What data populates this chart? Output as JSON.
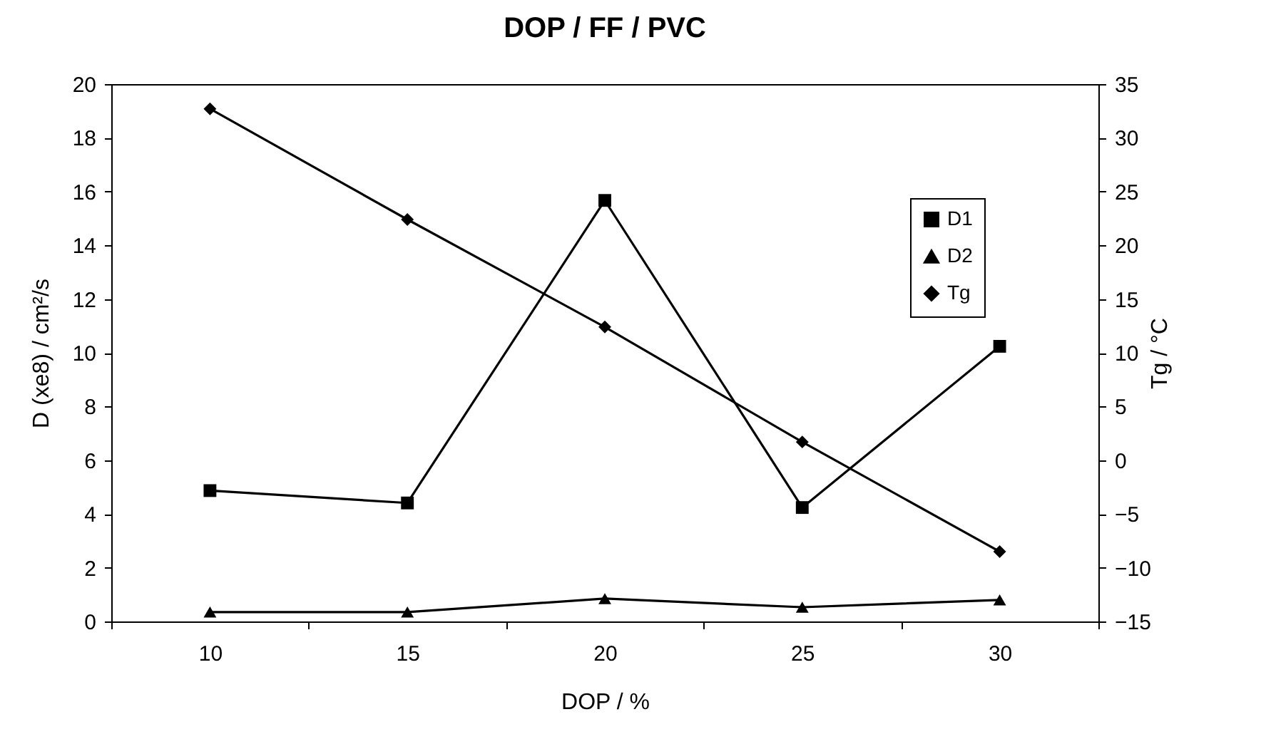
{
  "chart_data": {
    "type": "line",
    "title": "DOP / FF / PVC",
    "xlabel": "DOP / %",
    "ylabel": "D (xe8) / cm²/s",
    "y2label": "Tg / °C",
    "categories": [
      "10",
      "15",
      "20",
      "25",
      "30"
    ],
    "series": [
      {
        "name": "D1",
        "color": "#000000",
        "marker": "square",
        "values": [
          4.87,
          4.41,
          15.67,
          4.24,
          10.24
        ]
      },
      {
        "name": "D2",
        "color": "#000000",
        "marker": "triangle",
        "values": [
          0.35,
          0.35,
          0.85,
          0.53,
          0.8
        ]
      },
      {
        "name": "Tg",
        "color": "#000000",
        "marker": "diamond",
        "axis": "y2",
        "values": [
          32.7,
          22.4,
          12.4,
          1.7,
          -8.5
        ]
      }
    ],
    "ylim": [
      0,
      20
    ],
    "yticks": [
      0,
      2,
      4,
      6,
      8,
      10,
      12,
      14,
      16,
      18,
      20
    ],
    "y2lim": [
      -15,
      35
    ],
    "y2ticks": [
      -15,
      -10,
      -5,
      0,
      5,
      10,
      15,
      20,
      25,
      30,
      35
    ],
    "grid": false,
    "legend": "top right",
    "line_style": "solid"
  }
}
